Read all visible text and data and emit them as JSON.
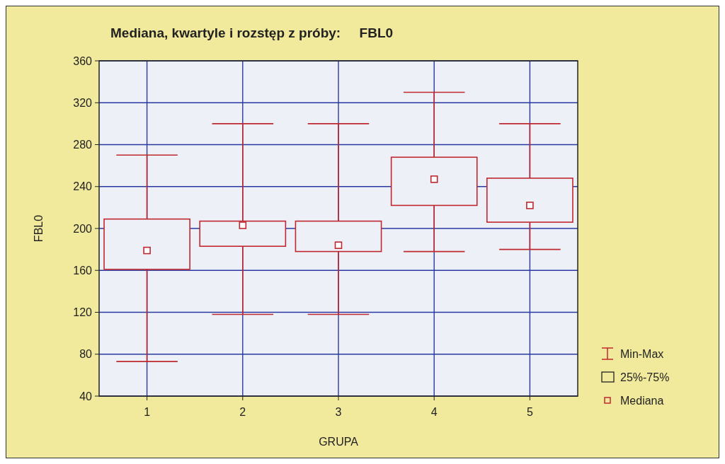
{
  "chart_data": {
    "type": "box",
    "title": "Mediana, kwartyle i rozstęp z próby:     FBL0",
    "xlabel": "GRUPA",
    "ylabel": "FBL0",
    "categories": [
      "1",
      "2",
      "3",
      "4",
      "5"
    ],
    "series": [
      {
        "color": "#c0282f",
        "boxes": [
          {
            "low": 73,
            "q1": 161,
            "median": 179,
            "q3": 209,
            "high": 270
          },
          {
            "low": 118,
            "q1": 183,
            "median": 203,
            "q3": 207,
            "high": 300
          },
          {
            "low": 118,
            "q1": 178,
            "median": 184,
            "q3": 207,
            "high": 300
          },
          {
            "low": 178,
            "q1": 222,
            "median": 247,
            "q3": 268,
            "high": 330
          },
          {
            "low": 180,
            "q1": 206,
            "median": 222,
            "q3": 248,
            "high": 300
          }
        ]
      }
    ],
    "ylim": [
      40,
      360
    ],
    "yticks": [
      40,
      80,
      120,
      160,
      200,
      240,
      280,
      320,
      360
    ],
    "grid": true,
    "marker": "square",
    "annotations": [
      "Min-Max",
      "25%-75%",
      "Mediana"
    ]
  }
}
